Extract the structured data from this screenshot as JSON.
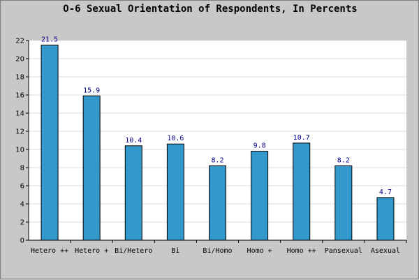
{
  "chart_data": {
    "type": "bar",
    "title": "O-6 Sexual Orientation of Respondents, In Percents",
    "xlabel": "",
    "ylabel": "",
    "categories": [
      "Hetero ++",
      "Hetero +",
      "Bi/Hetero",
      "Bi",
      "Bi/Homo",
      "Homo +",
      "Homo ++",
      "Pansexual",
      "Asexual"
    ],
    "values": [
      21.5,
      15.9,
      10.4,
      10.6,
      8.2,
      9.8,
      10.7,
      8.2,
      4.7
    ],
    "data_labels": [
      "21.5",
      "15.9",
      "10.4",
      "10.6",
      "8.2",
      "9.8",
      "10.7",
      "8.2",
      "4.7"
    ],
    "ylim": [
      0,
      22
    ],
    "yticks": [
      0,
      2,
      4,
      6,
      8,
      10,
      12,
      14,
      16,
      18,
      20,
      22
    ],
    "grid": true,
    "bar_color": "#3399cc",
    "plot_background": "#ffffff",
    "data_label_color": "#00008b"
  }
}
